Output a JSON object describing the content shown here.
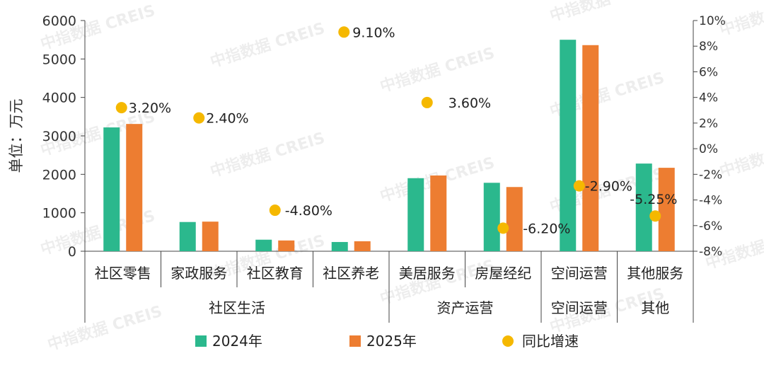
{
  "watermark": "中指数据 CREIS",
  "chart_data": {
    "type": "bar",
    "ylabel": "单位：万元",
    "ylim": [
      0,
      6000
    ],
    "y_ticks": [
      0,
      1000,
      2000,
      3000,
      4000,
      5000,
      6000
    ],
    "y2lim": [
      -8,
      10
    ],
    "y2_ticks": [
      "-8%",
      "-6%",
      "-4%",
      "-2%",
      "0%",
      "2%",
      "4%",
      "6%",
      "8%",
      "10%"
    ],
    "grid": false,
    "legend_position": "bottom",
    "categories": [
      "社区零售",
      "家政服务",
      "社区教育",
      "社区养老",
      "美居服务",
      "房屋经纪",
      "空间运营",
      "其他服务"
    ],
    "groups": [
      {
        "label": "社区生活",
        "count": 4
      },
      {
        "label": "资产运营",
        "count": 2
      },
      {
        "label": "空间运营",
        "count": 1
      },
      {
        "label": "其他",
        "count": 1
      }
    ],
    "series": [
      {
        "name": "2024年",
        "color": "#2bb88d",
        "values": [
          3220,
          760,
          300,
          240,
          1900,
          1780,
          5500,
          2280
        ]
      },
      {
        "name": "2025年",
        "color": "#ed7d31",
        "values": [
          3310,
          770,
          280,
          260,
          1970,
          1670,
          5360,
          2170
        ]
      }
    ],
    "growth": {
      "name": "同比增速",
      "color": "#f5b800",
      "values": [
        3.2,
        2.4,
        -4.8,
        9.1,
        3.6,
        -6.2,
        -2.9,
        -5.25
      ],
      "labels": [
        "3.20%",
        "2.40%",
        "-4.80%",
        "9.10%",
        "3.60%",
        "-6.20%",
        "-2.90%",
        "-5.25%"
      ]
    }
  }
}
